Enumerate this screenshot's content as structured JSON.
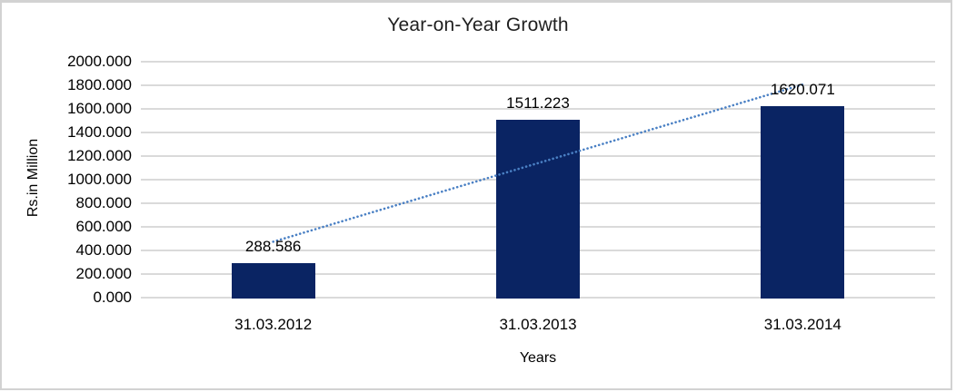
{
  "chart_data": {
    "type": "bar",
    "title": "Year-on-Year Growth",
    "categories": [
      "31.03.2012",
      "31.03.2013",
      "31.03.2014"
    ],
    "values": [
      288.586,
      1511.223,
      1620.071
    ],
    "data_labels": [
      "288.586",
      "1511.223",
      "1620.071"
    ],
    "xlabel": "Years",
    "ylabel": "Rs.in Million",
    "ylim": [
      0,
      2000
    ],
    "ytick_step": 200,
    "ytick_labels": [
      "2000.000",
      "1800.000",
      "1600.000",
      "1400.000",
      "1200.000",
      "1000.000",
      "800.000",
      "600.000",
      "400.000",
      "200.000",
      "0.000"
    ],
    "grid": true,
    "legend": false,
    "bar_color": "#0A2463",
    "gridline_color": "#DADADA",
    "trendline": {
      "type": "linear",
      "style": "dotted",
      "color": "#4A80C4",
      "start_value": 474,
      "end_value": 1806
    }
  }
}
